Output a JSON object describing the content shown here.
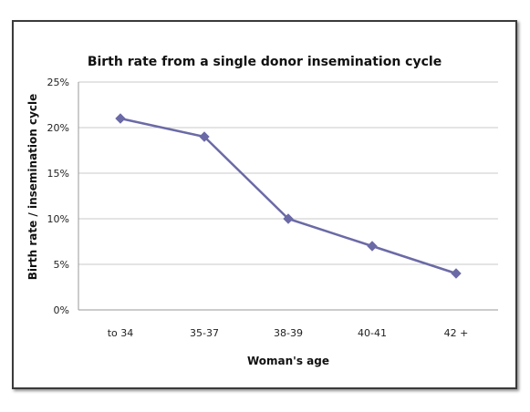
{
  "chart_data": {
    "type": "line",
    "title": "Birth rate from a single donor insemination cycle",
    "xlabel": "Woman's age",
    "ylabel": "Birth rate / insemination cycle",
    "categories": [
      "to 34",
      "35-37",
      "38-39",
      "40-41",
      "42 +"
    ],
    "series": [
      {
        "values": [
          21,
          19,
          10,
          7,
          4
        ],
        "color": "#6b6aa6",
        "marker": "diamond"
      }
    ],
    "y_ticks": [
      "0%",
      "5%",
      "10%",
      "15%",
      "20%",
      "25%"
    ],
    "ylim": [
      0,
      25
    ],
    "grid": true,
    "legend": "none"
  }
}
